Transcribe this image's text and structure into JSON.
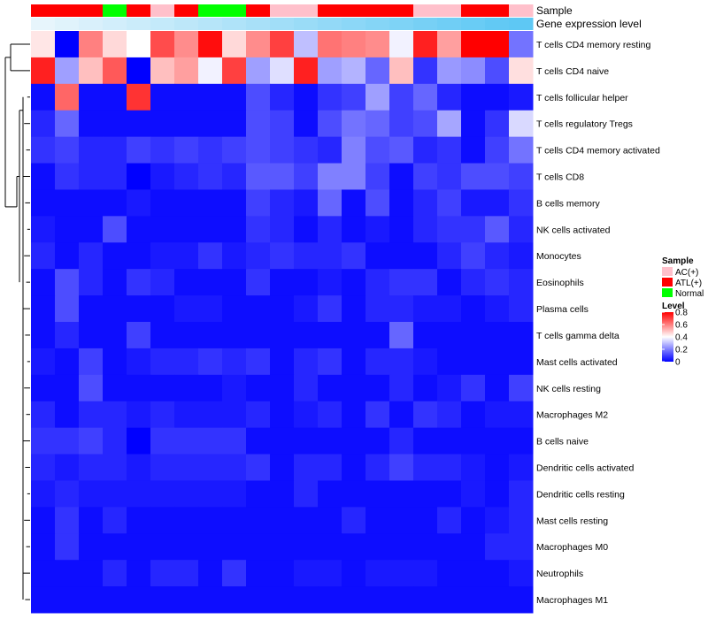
{
  "chart_data": {
    "type": "heatmap",
    "title": "",
    "annotation_labels": [
      "Sample",
      "Gene expression level"
    ],
    "sample_groups": [
      "ATL(+)",
      "ATL(+)",
      "ATL(+)",
      "Normal",
      "ATL(+)",
      "AC(+)",
      "ATL(+)",
      "Normal",
      "Normal",
      "ATL(+)",
      "AC(+)",
      "AC(+)",
      "ATL(+)",
      "ATL(+)",
      "ATL(+)",
      "ATL(+)",
      "AC(+)",
      "AC(+)",
      "ATL(+)",
      "ATL(+)",
      "AC(+)"
    ],
    "expression_level": [
      0.02,
      0.07,
      0.12,
      0.17,
      0.22,
      0.27,
      0.32,
      0.37,
      0.42,
      0.47,
      0.52,
      0.57,
      0.62,
      0.67,
      0.72,
      0.77,
      0.82,
      0.87,
      0.92,
      0.97,
      1.0
    ],
    "rows": [
      "T cells CD4 memory resting",
      "T cells CD4 naive",
      "T cells follicular helper",
      "T cells regulatory  Tregs",
      "T cells CD4 memory activated",
      "T cells CD8",
      "B cells memory",
      "NK cells activated",
      "Monocytes",
      "Eosinophils",
      "Plasma cells",
      "T cells gamma delta",
      "Mast cells activated",
      "NK cells resting",
      "Macrophages M2",
      "B cells naive",
      "Dendritic cells activated",
      "Dendritic cells resting",
      "Mast cells resting",
      "Macrophages M0",
      "Neutrophils",
      "Macrophages M1"
    ],
    "values": [
      [
        0.44,
        0.0,
        0.6,
        0.46,
        0.4,
        0.68,
        0.58,
        0.78,
        0.46,
        0.58,
        0.7,
        0.3,
        0.62,
        0.6,
        0.58,
        0.38,
        0.75,
        0.55,
        0.8,
        0.8,
        0.18
      ],
      [
        0.75,
        0.25,
        0.5,
        0.66,
        0.0,
        0.5,
        0.55,
        0.38,
        0.7,
        0.25,
        0.35,
        0.75,
        0.25,
        0.28,
        0.16,
        0.5,
        0.08,
        0.24,
        0.22,
        0.12,
        0.45
      ],
      [
        0.02,
        0.64,
        0.02,
        0.02,
        0.72,
        0.02,
        0.02,
        0.02,
        0.02,
        0.12,
        0.06,
        0.02,
        0.08,
        0.1,
        0.25,
        0.1,
        0.16,
        0.06,
        0.02,
        0.02,
        0.04
      ],
      [
        0.06,
        0.16,
        0.02,
        0.02,
        0.02,
        0.02,
        0.02,
        0.02,
        0.02,
        0.12,
        0.1,
        0.02,
        0.12,
        0.18,
        0.16,
        0.1,
        0.12,
        0.26,
        0.02,
        0.08,
        0.34
      ],
      [
        0.08,
        0.1,
        0.06,
        0.06,
        0.1,
        0.08,
        0.1,
        0.08,
        0.1,
        0.12,
        0.1,
        0.08,
        0.06,
        0.2,
        0.12,
        0.14,
        0.06,
        0.08,
        0.02,
        0.1,
        0.18
      ],
      [
        0.02,
        0.08,
        0.06,
        0.06,
        0.0,
        0.04,
        0.06,
        0.08,
        0.06,
        0.14,
        0.14,
        0.1,
        0.2,
        0.2,
        0.1,
        0.02,
        0.1,
        0.08,
        0.12,
        0.12,
        0.1
      ],
      [
        0.02,
        0.02,
        0.02,
        0.02,
        0.04,
        0.02,
        0.02,
        0.02,
        0.02,
        0.1,
        0.06,
        0.04,
        0.16,
        0.02,
        0.12,
        0.02,
        0.06,
        0.1,
        0.04,
        0.04,
        0.08
      ],
      [
        0.04,
        0.02,
        0.02,
        0.12,
        0.02,
        0.02,
        0.02,
        0.02,
        0.02,
        0.08,
        0.06,
        0.02,
        0.06,
        0.02,
        0.04,
        0.02,
        0.06,
        0.08,
        0.08,
        0.14,
        0.06
      ],
      [
        0.06,
        0.02,
        0.06,
        0.02,
        0.02,
        0.04,
        0.04,
        0.08,
        0.04,
        0.06,
        0.08,
        0.06,
        0.06,
        0.08,
        0.02,
        0.02,
        0.02,
        0.06,
        0.1,
        0.06,
        0.04
      ],
      [
        0.02,
        0.12,
        0.06,
        0.02,
        0.08,
        0.06,
        0.02,
        0.02,
        0.02,
        0.08,
        0.02,
        0.02,
        0.04,
        0.02,
        0.06,
        0.08,
        0.08,
        0.02,
        0.06,
        0.08,
        0.06
      ],
      [
        0.02,
        0.12,
        0.02,
        0.02,
        0.02,
        0.02,
        0.04,
        0.04,
        0.02,
        0.02,
        0.02,
        0.04,
        0.08,
        0.02,
        0.06,
        0.06,
        0.04,
        0.04,
        0.02,
        0.04,
        0.06
      ],
      [
        0.02,
        0.06,
        0.02,
        0.02,
        0.1,
        0.02,
        0.02,
        0.02,
        0.02,
        0.02,
        0.02,
        0.02,
        0.02,
        0.02,
        0.02,
        0.16,
        0.02,
        0.02,
        0.02,
        0.02,
        0.02
      ],
      [
        0.04,
        0.02,
        0.1,
        0.02,
        0.04,
        0.06,
        0.06,
        0.08,
        0.06,
        0.08,
        0.02,
        0.06,
        0.08,
        0.02,
        0.06,
        0.06,
        0.04,
        0.02,
        0.02,
        0.02,
        0.02
      ],
      [
        0.02,
        0.02,
        0.12,
        0.02,
        0.02,
        0.02,
        0.02,
        0.02,
        0.04,
        0.02,
        0.02,
        0.06,
        0.02,
        0.02,
        0.02,
        0.06,
        0.02,
        0.04,
        0.08,
        0.02,
        0.1
      ],
      [
        0.06,
        0.02,
        0.06,
        0.06,
        0.04,
        0.06,
        0.04,
        0.04,
        0.04,
        0.06,
        0.02,
        0.04,
        0.06,
        0.02,
        0.08,
        0.02,
        0.08,
        0.06,
        0.02,
        0.04,
        0.04
      ],
      [
        0.08,
        0.08,
        0.1,
        0.06,
        0.0,
        0.08,
        0.08,
        0.08,
        0.08,
        0.02,
        0.02,
        0.02,
        0.02,
        0.02,
        0.02,
        0.06,
        0.02,
        0.02,
        0.02,
        0.02,
        0.02
      ],
      [
        0.06,
        0.04,
        0.06,
        0.06,
        0.04,
        0.06,
        0.06,
        0.06,
        0.06,
        0.08,
        0.02,
        0.06,
        0.06,
        0.02,
        0.06,
        0.1,
        0.06,
        0.06,
        0.04,
        0.02,
        0.04
      ],
      [
        0.04,
        0.06,
        0.04,
        0.04,
        0.04,
        0.04,
        0.04,
        0.04,
        0.04,
        0.02,
        0.02,
        0.06,
        0.02,
        0.02,
        0.02,
        0.02,
        0.02,
        0.02,
        0.04,
        0.02,
        0.06
      ],
      [
        0.02,
        0.08,
        0.02,
        0.06,
        0.02,
        0.02,
        0.02,
        0.02,
        0.02,
        0.02,
        0.02,
        0.02,
        0.02,
        0.06,
        0.02,
        0.02,
        0.02,
        0.06,
        0.02,
        0.04,
        0.06
      ],
      [
        0.02,
        0.08,
        0.02,
        0.02,
        0.02,
        0.02,
        0.02,
        0.02,
        0.02,
        0.02,
        0.02,
        0.02,
        0.02,
        0.02,
        0.02,
        0.02,
        0.02,
        0.02,
        0.02,
        0.06,
        0.06
      ],
      [
        0.02,
        0.02,
        0.02,
        0.06,
        0.02,
        0.06,
        0.06,
        0.02,
        0.08,
        0.02,
        0.02,
        0.04,
        0.04,
        0.02,
        0.04,
        0.04,
        0.04,
        0.02,
        0.02,
        0.02,
        0.04
      ],
      [
        0.02,
        0.02,
        0.02,
        0.02,
        0.02,
        0.02,
        0.02,
        0.02,
        0.02,
        0.02,
        0.02,
        0.02,
        0.02,
        0.02,
        0.02,
        0.02,
        0.02,
        0.02,
        0.02,
        0.02,
        0.02
      ]
    ],
    "legend": {
      "sample_title": "Sample",
      "sample_entries": [
        {
          "label": "AC(+)",
          "color": "#ffc0cb"
        },
        {
          "label": "ATL(+)",
          "color": "#ff0000"
        },
        {
          "label": "Normal",
          "color": "#00ff00"
        }
      ],
      "level_title": "Level",
      "level_ticks": [
        "0.8",
        "0.6",
        "0.4",
        "0.2",
        "0"
      ],
      "level_range": [
        0,
        0.8
      ]
    },
    "color_scale": {
      "low": "#0000ff",
      "mid": "#ffffff",
      "high": "#ff0000",
      "min": 0,
      "mid_value": 0.4,
      "max": 0.8
    },
    "expression_colors": {
      "low": "#eaf6fc",
      "high": "#5ec8f4"
    },
    "legend_position": "right"
  }
}
